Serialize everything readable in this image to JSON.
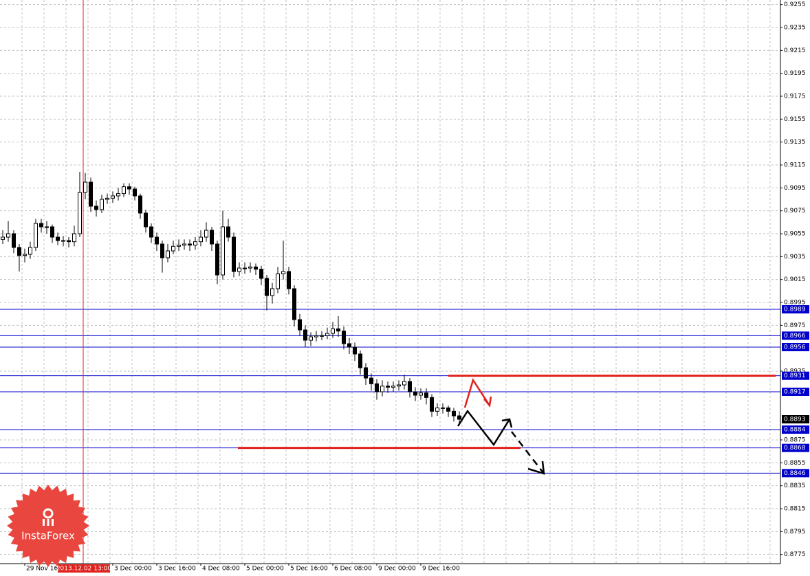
{
  "chart_data": {
    "type": "candlestick",
    "categories": [
      null,
      null,
      null,
      null,
      "29 Nov 16:00",
      null,
      null,
      null,
      null,
      null,
      null,
      null,
      null,
      null,
      null,
      null,
      null,
      null,
      null,
      null,
      "3 Dec 00:00",
      null,
      null,
      null,
      null,
      null,
      null,
      null,
      "3 Dec 16:00",
      null,
      null,
      null,
      null,
      null,
      null,
      null,
      "4 Dec 08:00",
      null,
      null,
      null,
      null,
      null,
      null,
      null,
      "5 Dec 00:00",
      null,
      null,
      null,
      null,
      null,
      null,
      null,
      "5 Dec 16:00",
      null,
      null,
      null,
      null,
      null,
      null,
      null,
      "6 Dec 08:00",
      null,
      null,
      null,
      null,
      null,
      null,
      null,
      "9 Dec 00:00",
      null,
      null,
      null,
      null,
      null,
      null,
      null,
      "9 Dec 16:00",
      null,
      null,
      null,
      null,
      null,
      null,
      null
    ],
    "open": [
      0.905,
      0.9052,
      0.9055,
      0.9043,
      0.9036,
      0.9037,
      0.9043,
      0.9064,
      0.9061,
      0.9061,
      0.9052,
      0.9049,
      0.9049,
      0.9048,
      0.9055,
      0.9091,
      0.91,
      0.9079,
      0.9076,
      0.9085,
      0.9086,
      0.9088,
      0.909,
      0.9096,
      0.9094,
      0.9088,
      0.9073,
      0.9061,
      0.9052,
      0.9046,
      0.9034,
      0.904,
      0.9044,
      0.9045,
      0.9046,
      0.9045,
      0.9048,
      0.9052,
      0.9058,
      0.9046,
      0.9019,
      0.9061,
      0.9052,
      0.9022,
      0.9025,
      0.9025,
      0.9026,
      0.9024,
      0.9016,
      0.9001,
      0.9007,
      0.902,
      0.9022,
      0.9007,
      0.898,
      0.8971,
      0.8962,
      0.8965,
      0.8966,
      0.8966,
      0.8968,
      0.8972,
      0.897,
      0.8959,
      0.8956,
      0.895,
      0.8938,
      0.8929,
      0.8924,
      0.8917,
      0.8922,
      0.8921,
      0.8922,
      0.8923,
      0.8926,
      0.8917,
      0.8914,
      0.8916,
      0.8912,
      0.89,
      0.8903,
      0.8903,
      0.89,
      0.8896
    ],
    "high": [
      0.9058,
      0.9066,
      0.9058,
      0.9046,
      0.9042,
      0.9048,
      0.9068,
      0.9068,
      0.9066,
      0.9063,
      0.9056,
      0.9053,
      0.9052,
      0.9062,
      0.9109,
      0.9108,
      0.9104,
      0.9084,
      0.9089,
      0.909,
      0.9092,
      0.9095,
      0.9099,
      0.9099,
      0.9096,
      0.909,
      0.9076,
      0.9064,
      0.9056,
      0.9049,
      0.9046,
      0.9049,
      0.905,
      0.905,
      0.905,
      0.9052,
      0.9058,
      0.9065,
      0.9061,
      0.9049,
      0.9075,
      0.9068,
      0.9056,
      0.903,
      0.903,
      0.903,
      0.9029,
      0.9027,
      0.9019,
      0.9012,
      0.9026,
      0.9049,
      0.9026,
      0.901,
      0.8985,
      0.8975,
      0.8969,
      0.897,
      0.897,
      0.8973,
      0.8978,
      0.8983,
      0.8974,
      0.8964,
      0.896,
      0.8953,
      0.8942,
      0.8933,
      0.8928,
      0.8927,
      0.8926,
      0.8926,
      0.8927,
      0.8932,
      0.8929,
      0.8921,
      0.892,
      0.892,
      0.8915,
      0.8907,
      0.8907,
      0.8905,
      0.8903,
      0.89
    ],
    "low": [
      0.9046,
      0.9048,
      0.9038,
      0.9022,
      0.903,
      0.9033,
      0.904,
      0.9056,
      0.9055,
      0.9047,
      0.9045,
      0.9044,
      0.9043,
      0.9044,
      0.9052,
      0.9085,
      0.9074,
      0.907,
      0.9073,
      0.9081,
      0.9082,
      0.9084,
      0.9087,
      0.9089,
      0.9084,
      0.9068,
      0.9056,
      0.9047,
      0.904,
      0.9021,
      0.903,
      0.9037,
      0.904,
      0.9041,
      0.904,
      0.9041,
      0.9044,
      0.9048,
      0.904,
      0.9011,
      0.9015,
      0.9048,
      0.9017,
      0.9018,
      0.902,
      0.9021,
      0.9019,
      0.901,
      0.8988,
      0.8994,
      0.9003,
      0.9015,
      0.9002,
      0.8974,
      0.8966,
      0.8956,
      0.8957,
      0.8961,
      0.8962,
      0.8963,
      0.8964,
      0.8965,
      0.8954,
      0.895,
      0.8944,
      0.8932,
      0.8923,
      0.8918,
      0.891,
      0.8913,
      0.8916,
      0.8917,
      0.8918,
      0.8919,
      0.8912,
      0.8909,
      0.891,
      0.8906,
      0.8895,
      0.8896,
      0.8898,
      0.8895,
      0.8891,
      0.8888
    ],
    "close": [
      0.9052,
      0.9055,
      0.9043,
      0.9036,
      0.9037,
      0.9043,
      0.9064,
      0.9061,
      0.9061,
      0.9052,
      0.9049,
      0.9049,
      0.9048,
      0.9055,
      0.9091,
      0.91,
      0.9079,
      0.9076,
      0.9085,
      0.9086,
      0.9088,
      0.909,
      0.9096,
      0.9094,
      0.9088,
      0.9073,
      0.9061,
      0.9052,
      0.9046,
      0.9034,
      0.904,
      0.9044,
      0.9045,
      0.9046,
      0.9045,
      0.9048,
      0.9052,
      0.9058,
      0.9046,
      0.9019,
      0.9061,
      0.9052,
      0.9022,
      0.9025,
      0.9025,
      0.9026,
      0.9024,
      0.9016,
      0.9001,
      0.9007,
      0.902,
      0.9022,
      0.9007,
      0.898,
      0.8971,
      0.8962,
      0.8965,
      0.8966,
      0.8966,
      0.8968,
      0.8972,
      0.897,
      0.8959,
      0.8956,
      0.895,
      0.8938,
      0.8929,
      0.8924,
      0.8917,
      0.8922,
      0.8921,
      0.8922,
      0.8923,
      0.8926,
      0.8917,
      0.8914,
      0.8916,
      0.8912,
      0.89,
      0.8903,
      0.8903,
      0.89,
      0.8896,
      0.8893
    ],
    "ylim": [
      0.8767,
      0.9259
    ],
    "yticks": [
      0.9255,
      0.9235,
      0.9215,
      0.9195,
      0.9175,
      0.9155,
      0.9135,
      0.9115,
      0.9095,
      0.9075,
      0.9055,
      0.9035,
      0.9015,
      0.8995,
      0.8975,
      0.8935,
      0.8875,
      0.8855,
      0.8835,
      0.8815,
      0.8795,
      0.8775
    ],
    "grid": true,
    "levels": [
      0.8989,
      0.8966,
      0.8956,
      0.8931,
      0.8917,
      0.8884,
      0.8868,
      0.8846
    ],
    "level_color": "#0000cc",
    "key_level_color": "#e0201c",
    "last_price": 0.8893,
    "crosshair_label": "2013.12.02 13:00",
    "logo": "InstaForex"
  }
}
